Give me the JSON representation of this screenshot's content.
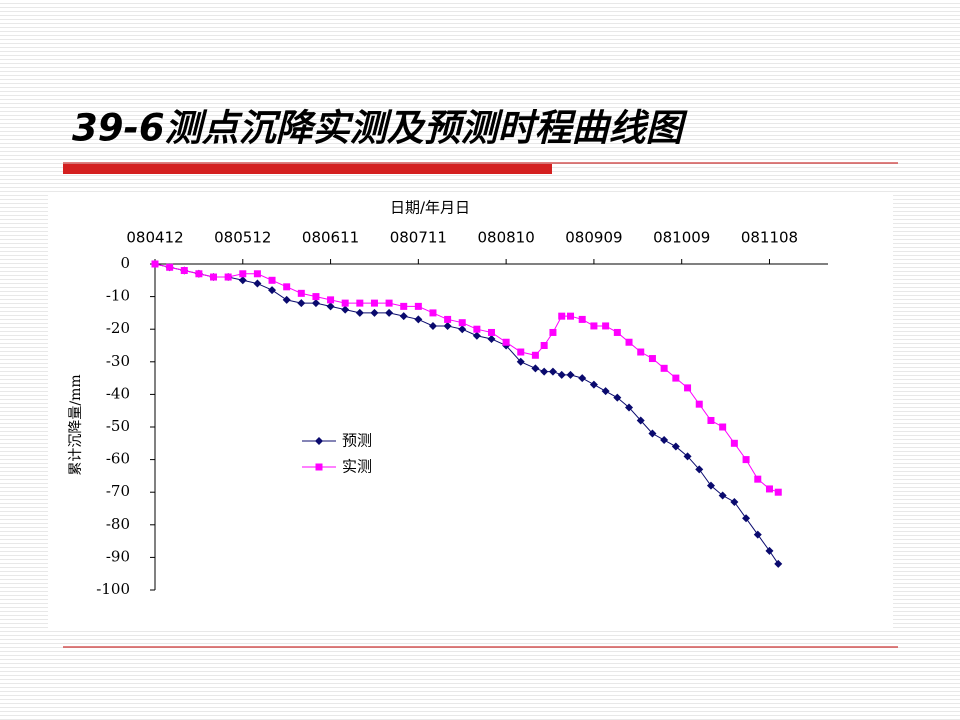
{
  "title": "39-6测点沉降实测及预测时程曲线图",
  "chart_data": {
    "type": "line",
    "x_label": "日期/年月日",
    "y_label": "累计沉降量/mm",
    "x": [
      "080412",
      "080417",
      "080422",
      "080427",
      "080502",
      "080507",
      "080512",
      "080517",
      "080522",
      "080527",
      "080601",
      "080606",
      "080611",
      "080616",
      "080621",
      "080626",
      "080701",
      "080706",
      "080711",
      "080716",
      "080721",
      "080726",
      "080731",
      "080805",
      "080810",
      "080815",
      "080820",
      "080823",
      "080826",
      "080829",
      "080901",
      "080905",
      "080909",
      "080913",
      "080917",
      "080921",
      "080925",
      "080929",
      "081003",
      "081007",
      "081011",
      "081015",
      "081019",
      "081023",
      "081027",
      "081031",
      "081104",
      "081108",
      "081111"
    ],
    "xlim": [
      "080412",
      "081128"
    ],
    "xticks": [
      "080412",
      "080512",
      "080611",
      "080711",
      "080810",
      "080909",
      "081009",
      "081108"
    ],
    "ylim": [
      -100,
      0
    ],
    "yticks": [
      0,
      -10,
      -20,
      -30,
      -40,
      -50,
      -60,
      -70,
      -80,
      -90,
      -100
    ],
    "series": [
      {
        "name": "预测",
        "color": "#0a0a6e",
        "marker": "diamond",
        "values": [
          0,
          -1,
          -2,
          -3,
          -4,
          -4,
          -5,
          -6,
          -8,
          -11,
          -12,
          -12,
          -13,
          -14,
          -15,
          -15,
          -15,
          -16,
          -17,
          -19,
          -19,
          -20,
          -22,
          -23,
          -25,
          -30,
          -32,
          -33,
          -33,
          -34,
          -34,
          -35,
          -37,
          -39,
          -41,
          -44,
          -48,
          -52,
          -54,
          -56,
          -59,
          -63,
          -68,
          -71,
          -73,
          -78,
          -83,
          -88,
          -92
        ]
      },
      {
        "name": "实测",
        "color": "#ff00ff",
        "marker": "square",
        "values": [
          0,
          -1,
          -2,
          -3,
          -4,
          -4,
          -3,
          -3,
          -5,
          -7,
          -9,
          -10,
          -11,
          -12,
          -12,
          -12,
          -12,
          -13,
          -13,
          -15,
          -17,
          -18,
          -20,
          -21,
          -24,
          -27,
          -28,
          -25,
          -21,
          -16,
          -16,
          -17,
          -19,
          -19,
          -21,
          -24,
          -27,
          -29,
          -32,
          -35,
          -38,
          -43,
          -48,
          -50,
          -55,
          -60,
          -66,
          -69,
          -70
        ]
      }
    ],
    "legend": "left"
  }
}
